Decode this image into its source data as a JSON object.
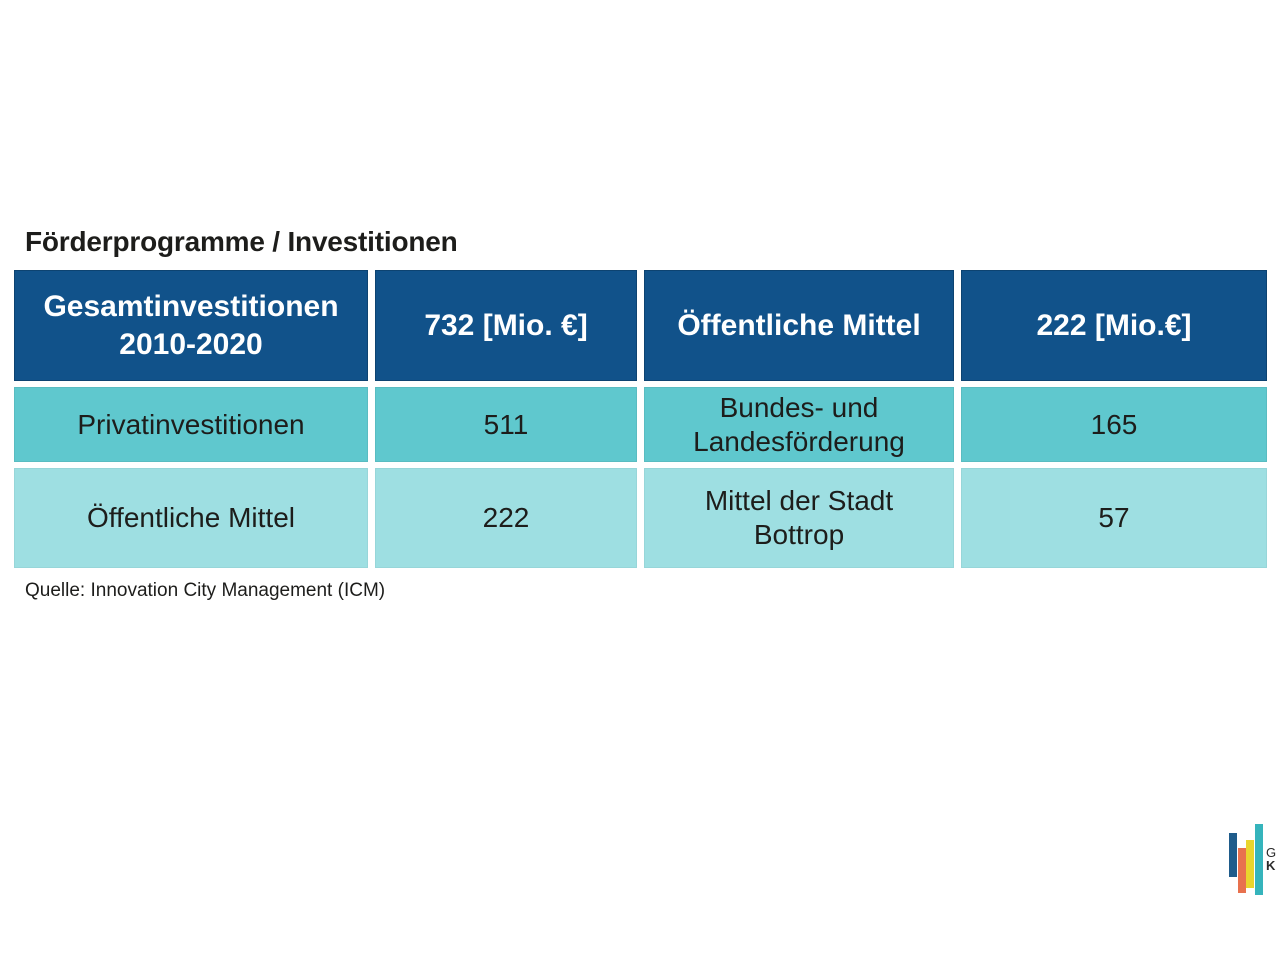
{
  "chart_data": {
    "type": "table",
    "title": "Förderprogramme / Investitionen",
    "columns": [
      "Gesamtinvestitionen 2010-2020",
      "732 [Mio. €]",
      "Öffentliche Mittel",
      "222 [Mio.€]"
    ],
    "rows": [
      [
        "Privatinvestitionen",
        "511",
        "Bundes- und Landesförderung",
        "165"
      ],
      [
        "Öffentliche Mittel",
        "222",
        "Mittel der Stadt Bottrop",
        "57"
      ]
    ],
    "units": "Mio. €",
    "source": "Quelle: Innovation City Management (ICM)",
    "legend_position": "none",
    "grid": false
  },
  "logo": {
    "letters": [
      "G",
      "K"
    ]
  },
  "colors": {
    "header_bg": "#11528a",
    "row_dark_bg": "#5fc8ce",
    "row_light_bg": "#9edfe2",
    "text": "#1d1d1b",
    "logo_blue": "#1f5c8b",
    "logo_orange": "#e8714e",
    "logo_yellow": "#e9d52d",
    "logo_teal": "#35b4bc"
  }
}
